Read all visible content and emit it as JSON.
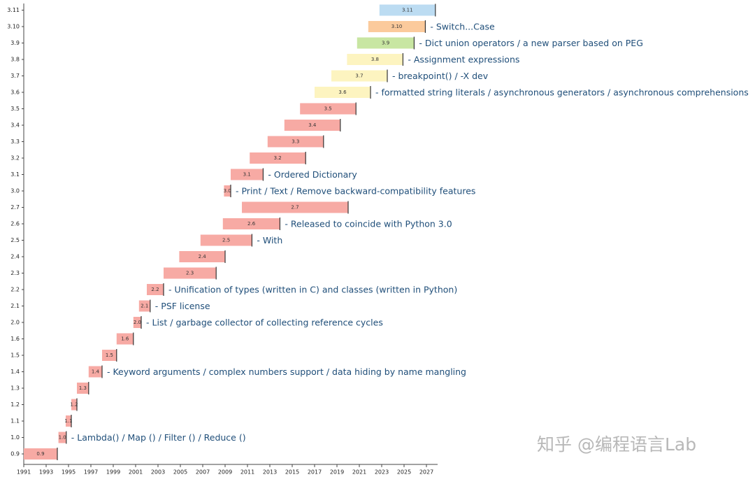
{
  "chart_data": {
    "type": "gantt",
    "categories": [
      "0.9",
      "1.0",
      "1.1",
      "1.2",
      "1.3",
      "1.4",
      "1.5",
      "1.6",
      "2.0",
      "2.1",
      "2.2",
      "2.3",
      "2.4",
      "2.5",
      "2.6",
      "2.7",
      "3.0",
      "3.1",
      "3.2",
      "3.3",
      "3.4",
      "3.5",
      "3.6",
      "3.7",
      "3.8",
      "3.9",
      "3.10",
      "3.11"
    ],
    "start": [
      1991.0,
      1994.1,
      1994.75,
      1995.25,
      1995.75,
      1996.8,
      1998.0,
      1999.3,
      2000.8,
      2001.3,
      2002.0,
      2003.5,
      2004.9,
      2006.8,
      2008.8,
      2010.5,
      2008.9,
      2009.5,
      2011.2,
      2012.8,
      2014.3,
      2015.7,
      2017.0,
      2018.5,
      2019.9,
      2020.8,
      2021.8,
      2022.8
    ],
    "end": [
      1994.0,
      1994.8,
      1995.25,
      1995.75,
      1996.8,
      1998.0,
      1999.3,
      2000.8,
      2001.5,
      2002.3,
      2003.5,
      2008.2,
      2009.0,
      2011.4,
      2013.9,
      2020.0,
      2009.5,
      2012.4,
      2016.2,
      2017.8,
      2019.3,
      2020.7,
      2022.0,
      2023.5,
      2024.9,
      2025.9,
      2026.9,
      2027.8
    ],
    "colors": [
      "#f7aaa4",
      "#f7aaa4",
      "#f7aaa4",
      "#f7aaa4",
      "#f7aaa4",
      "#f7aaa4",
      "#f7aaa4",
      "#f7aaa4",
      "#f7aaa4",
      "#f7aaa4",
      "#f7aaa4",
      "#f7aaa4",
      "#f7aaa4",
      "#f7aaa4",
      "#f7aaa4",
      "#f7aaa4",
      "#f7aaa4",
      "#f7aaa4",
      "#f7aaa4",
      "#f7aaa4",
      "#f7aaa4",
      "#f7aaa4",
      "#fdf4c0",
      "#fdf4c0",
      "#fdf4c0",
      "#c8e6a2",
      "#fbca9c",
      "#bcdcf2"
    ],
    "notes": [
      null,
      "- Lambda() / Map () / Filter () / Reduce ()",
      null,
      null,
      null,
      "- Keyword arguments / complex numbers support / data hiding by name mangling",
      null,
      null,
      "- List / garbage collector of collecting reference cycles",
      "- PSF license",
      "- Unification of types (written in C) and classes (written in Python)",
      null,
      null,
      "- With",
      "-   Released to coincide with Python 3.0",
      null,
      "- Print / Text / Remove backward-compatibility features",
      "- Ordered Dictionary",
      null,
      null,
      null,
      null,
      "- formatted string literals / asynchronous generators / asynchronous comprehensions",
      "- breakpoint() / -X dev",
      "- Assignment expressions",
      "- Dict union operators / a new parser based on PEG",
      "- Switch...Case",
      null
    ],
    "xlim": [
      1991,
      2028
    ],
    "xticks": [
      1991,
      1993,
      1995,
      1997,
      1999,
      2001,
      2003,
      2005,
      2007,
      2009,
      2011,
      2013,
      2015,
      2017,
      2019,
      2021,
      2023,
      2025,
      2027
    ],
    "watermark": "知乎 @编程语言Lab"
  }
}
